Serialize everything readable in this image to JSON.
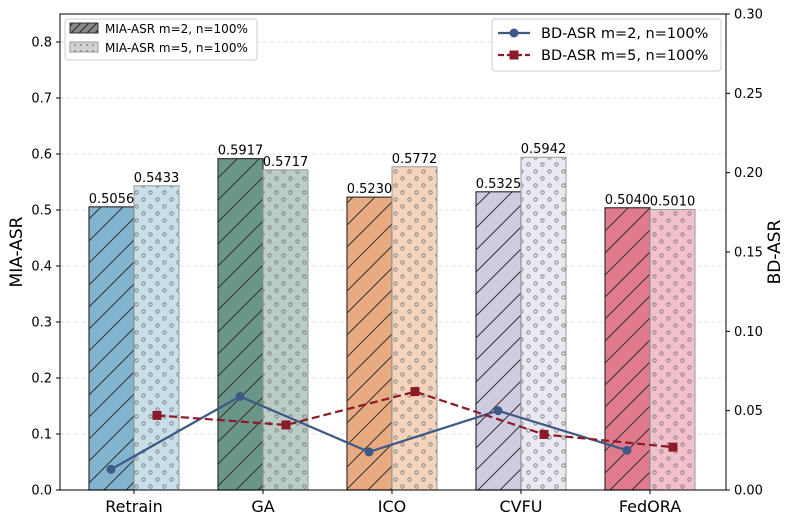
{
  "chart_data": {
    "type": "bar",
    "categories": [
      "Retrain",
      "GA",
      "ICO",
      "CVFU",
      "FedORA"
    ],
    "bar_series": [
      {
        "name": "MIA-ASR m=2, n=100%",
        "values": [
          0.5056,
          0.5917,
          0.523,
          0.5325,
          0.504
        ],
        "value_labels": [
          "0.5056",
          "0.5917",
          "0.5230",
          "0.5325",
          "0.5040"
        ],
        "colors": [
          "#82b4cf",
          "#6a968a",
          "#e8aa80",
          "#cfcbe0",
          "#e27a8e"
        ],
        "hatch": "diagonal"
      },
      {
        "name": "MIA-ASR m=5, n=100%",
        "values": [
          0.5433,
          0.5717,
          0.5772,
          0.5942,
          0.501
        ],
        "value_labels": [
          "0.5433",
          "0.5717",
          "0.5772",
          "0.5942",
          "0.5010"
        ],
        "colors": [
          "#c2dae6",
          "#b4c8c1",
          "#f3cfb6",
          "#e8e6ee",
          "#f0b9c4"
        ],
        "hatch": "dots"
      }
    ],
    "line_series": [
      {
        "name": "BD-ASR m=2, n=100%",
        "values": [
          0.013,
          0.059,
          0.024,
          0.05,
          0.025
        ],
        "color": "#3e5a84",
        "marker": "circle",
        "style": "solid"
      },
      {
        "name": "BD-ASR m=5, n=100%",
        "values": [
          0.047,
          0.041,
          0.062,
          0.035,
          0.027
        ],
        "color": "#8c1a28",
        "marker": "square",
        "style": "dashed"
      }
    ],
    "ylabel": "MIA-ASR",
    "y2label": "BD-ASR",
    "ylim": [
      0,
      0.85
    ],
    "y2lim": [
      0,
      0.3
    ],
    "yticks": [
      "0.0",
      "0.1",
      "0.2",
      "0.3",
      "0.4",
      "0.5",
      "0.6",
      "0.7",
      "0.8"
    ],
    "y2ticks": [
      "0.00",
      "0.05",
      "0.10",
      "0.15",
      "0.20",
      "0.25",
      "0.30"
    ],
    "grid": true,
    "bar_legend_position": "top-left",
    "line_legend_position": "top-right"
  }
}
